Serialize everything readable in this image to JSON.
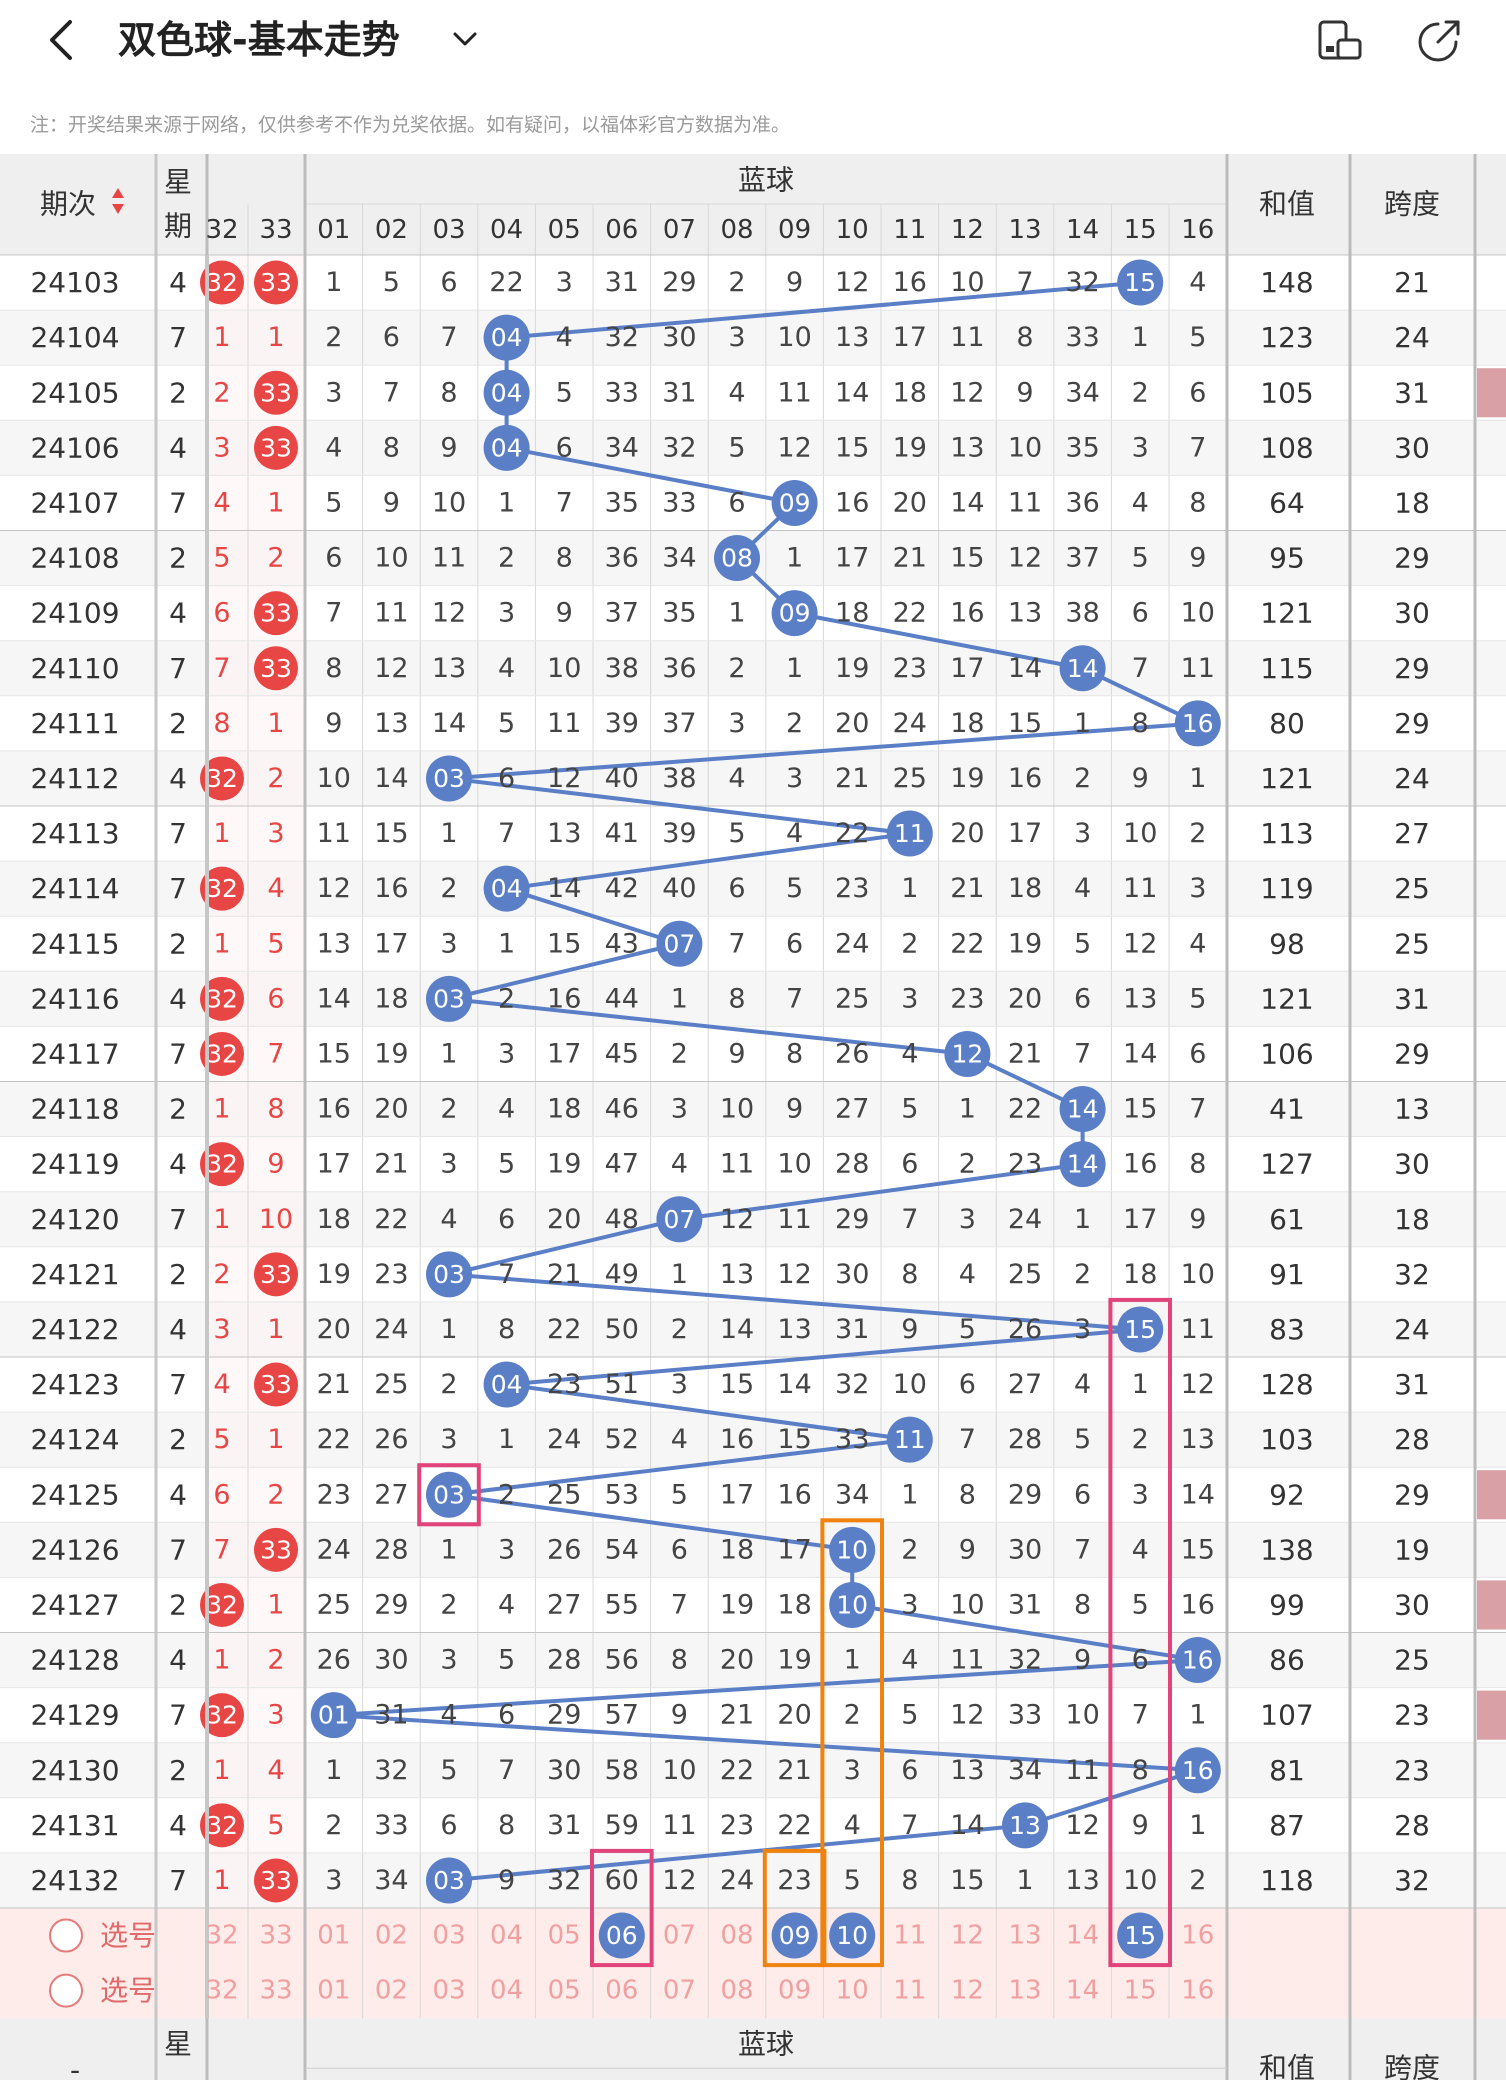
{
  "header": {
    "title": "双色球-基本走势",
    "note": "注：开奖结果来源于网络，仅供参考不作为兑奖依据。如有疑问，以福体彩官方数据为准。"
  },
  "table": {
    "col_issue": "期次",
    "col_week": "星期",
    "blue_group": "蓝球",
    "col_sum": "和值",
    "col_span": "跨度",
    "red_cols": [
      "32",
      "33"
    ],
    "blue_cols": [
      "01",
      "02",
      "03",
      "04",
      "05",
      "06",
      "07",
      "08",
      "09",
      "10",
      "11",
      "12",
      "13",
      "14",
      "15",
      "16"
    ],
    "rows": [
      {
        "issue": "24103",
        "week": "4",
        "r32": "32",
        "r33": "33",
        "r32_hit": true,
        "r33_hit": true,
        "blue": [
          "1",
          "5",
          "6",
          "22",
          "3",
          "31",
          "29",
          "2",
          "9",
          "12",
          "16",
          "10",
          "7",
          "32",
          "15",
          "4"
        ],
        "hit": 15,
        "sum": "148",
        "span": "21",
        "pink": false
      },
      {
        "issue": "24104",
        "week": "7",
        "r32": "1",
        "r33": "1",
        "r32_hit": false,
        "r33_hit": false,
        "blue": [
          "2",
          "6",
          "7",
          "04",
          "4",
          "32",
          "30",
          "3",
          "10",
          "13",
          "17",
          "11",
          "8",
          "33",
          "1",
          "5"
        ],
        "hit": 4,
        "sum": "123",
        "span": "24",
        "pink": false
      },
      {
        "issue": "24105",
        "week": "2",
        "r32": "2",
        "r33": "33",
        "r32_hit": false,
        "r33_hit": true,
        "blue": [
          "3",
          "7",
          "8",
          "04",
          "5",
          "33",
          "31",
          "4",
          "11",
          "14",
          "18",
          "12",
          "9",
          "34",
          "2",
          "6"
        ],
        "hit": 4,
        "sum": "105",
        "span": "31",
        "pink": true
      },
      {
        "issue": "24106",
        "week": "4",
        "r32": "3",
        "r33": "33",
        "r32_hit": false,
        "r33_hit": true,
        "blue": [
          "4",
          "8",
          "9",
          "04",
          "6",
          "34",
          "32",
          "5",
          "12",
          "15",
          "19",
          "13",
          "10",
          "35",
          "3",
          "7"
        ],
        "hit": 4,
        "sum": "108",
        "span": "30",
        "pink": false
      },
      {
        "issue": "24107",
        "week": "7",
        "r32": "4",
        "r33": "1",
        "r32_hit": false,
        "r33_hit": false,
        "blue": [
          "5",
          "9",
          "10",
          "1",
          "7",
          "35",
          "33",
          "6",
          "09",
          "16",
          "20",
          "14",
          "11",
          "36",
          "4",
          "8"
        ],
        "hit": 9,
        "sum": "64",
        "span": "18",
        "pink": false
      },
      {
        "issue": "24108",
        "week": "2",
        "r32": "5",
        "r33": "2",
        "r32_hit": false,
        "r33_hit": false,
        "blue": [
          "6",
          "10",
          "11",
          "2",
          "8",
          "36",
          "34",
          "08",
          "1",
          "17",
          "21",
          "15",
          "12",
          "37",
          "5",
          "9"
        ],
        "hit": 8,
        "sum": "95",
        "span": "29",
        "pink": false
      },
      {
        "issue": "24109",
        "week": "4",
        "r32": "6",
        "r33": "33",
        "r32_hit": false,
        "r33_hit": true,
        "blue": [
          "7",
          "11",
          "12",
          "3",
          "9",
          "37",
          "35",
          "1",
          "09",
          "18",
          "22",
          "16",
          "13",
          "38",
          "6",
          "10"
        ],
        "hit": 9,
        "sum": "121",
        "span": "30",
        "pink": false
      },
      {
        "issue": "24110",
        "week": "7",
        "r32": "7",
        "r33": "33",
        "r32_hit": false,
        "r33_hit": true,
        "blue": [
          "8",
          "12",
          "13",
          "4",
          "10",
          "38",
          "36",
          "2",
          "1",
          "19",
          "23",
          "17",
          "14",
          "14",
          "7",
          "11"
        ],
        "hit": 14,
        "sum": "115",
        "span": "29",
        "pink": false
      },
      {
        "issue": "24111",
        "week": "2",
        "r32": "8",
        "r33": "1",
        "r32_hit": false,
        "r33_hit": false,
        "blue": [
          "9",
          "13",
          "14",
          "5",
          "11",
          "39",
          "37",
          "3",
          "2",
          "20",
          "24",
          "18",
          "15",
          "1",
          "8",
          "16"
        ],
        "hit": 16,
        "sum": "80",
        "span": "29",
        "pink": false
      },
      {
        "issue": "24112",
        "week": "4",
        "r32": "32",
        "r33": "2",
        "r32_hit": true,
        "r33_hit": false,
        "blue": [
          "10",
          "14",
          "03",
          "6",
          "12",
          "40",
          "38",
          "4",
          "3",
          "21",
          "25",
          "19",
          "16",
          "2",
          "9",
          "1"
        ],
        "hit": 3,
        "sum": "121",
        "span": "24",
        "pink": false
      },
      {
        "issue": "24113",
        "week": "7",
        "r32": "1",
        "r33": "3",
        "r32_hit": false,
        "r33_hit": false,
        "blue": [
          "11",
          "15",
          "1",
          "7",
          "13",
          "41",
          "39",
          "5",
          "4",
          "22",
          "11",
          "20",
          "17",
          "3",
          "10",
          "2"
        ],
        "hit": 11,
        "sum": "113",
        "span": "27",
        "pink": false
      },
      {
        "issue": "24114",
        "week": "7",
        "r32": "32",
        "r33": "4",
        "r32_hit": true,
        "r33_hit": false,
        "blue": [
          "12",
          "16",
          "2",
          "04",
          "14",
          "42",
          "40",
          "6",
          "5",
          "23",
          "1",
          "21",
          "18",
          "4",
          "11",
          "3"
        ],
        "hit": 4,
        "sum": "119",
        "span": "25",
        "pink": false
      },
      {
        "issue": "24115",
        "week": "2",
        "r32": "1",
        "r33": "5",
        "r32_hit": false,
        "r33_hit": false,
        "blue": [
          "13",
          "17",
          "3",
          "1",
          "15",
          "43",
          "07",
          "7",
          "6",
          "24",
          "2",
          "22",
          "19",
          "5",
          "12",
          "4"
        ],
        "hit": 7,
        "sum": "98",
        "span": "25",
        "pink": false
      },
      {
        "issue": "24116",
        "week": "4",
        "r32": "32",
        "r33": "6",
        "r32_hit": true,
        "r33_hit": false,
        "blue": [
          "14",
          "18",
          "03",
          "2",
          "16",
          "44",
          "1",
          "8",
          "7",
          "25",
          "3",
          "23",
          "20",
          "6",
          "13",
          "5"
        ],
        "hit": 3,
        "sum": "121",
        "span": "31",
        "pink": false
      },
      {
        "issue": "24117",
        "week": "7",
        "r32": "32",
        "r33": "7",
        "r32_hit": true,
        "r33_hit": false,
        "blue": [
          "15",
          "19",
          "1",
          "3",
          "17",
          "45",
          "2",
          "9",
          "8",
          "26",
          "4",
          "12",
          "21",
          "7",
          "14",
          "6"
        ],
        "hit": 12,
        "sum": "106",
        "span": "29",
        "pink": false
      },
      {
        "issue": "24118",
        "week": "2",
        "r32": "1",
        "r33": "8",
        "r32_hit": false,
        "r33_hit": false,
        "blue": [
          "16",
          "20",
          "2",
          "4",
          "18",
          "46",
          "3",
          "10",
          "9",
          "27",
          "5",
          "1",
          "22",
          "14",
          "15",
          "7"
        ],
        "hit": 14,
        "sum": "41",
        "span": "13",
        "pink": false
      },
      {
        "issue": "24119",
        "week": "4",
        "r32": "32",
        "r33": "9",
        "r32_hit": true,
        "r33_hit": false,
        "blue": [
          "17",
          "21",
          "3",
          "5",
          "19",
          "47",
          "4",
          "11",
          "10",
          "28",
          "6",
          "2",
          "23",
          "14",
          "16",
          "8"
        ],
        "hit": 14,
        "sum": "127",
        "span": "30",
        "pink": false
      },
      {
        "issue": "24120",
        "week": "7",
        "r32": "1",
        "r33": "10",
        "r32_hit": false,
        "r33_hit": false,
        "blue": [
          "18",
          "22",
          "4",
          "6",
          "20",
          "48",
          "07",
          "12",
          "11",
          "29",
          "7",
          "3",
          "24",
          "1",
          "17",
          "9"
        ],
        "hit": 7,
        "sum": "61",
        "span": "18",
        "pink": false
      },
      {
        "issue": "24121",
        "week": "2",
        "r32": "2",
        "r33": "33",
        "r32_hit": false,
        "r33_hit": true,
        "blue": [
          "19",
          "23",
          "03",
          "7",
          "21",
          "49",
          "1",
          "13",
          "12",
          "30",
          "8",
          "4",
          "25",
          "2",
          "18",
          "10"
        ],
        "hit": 3,
        "sum": "91",
        "span": "32",
        "pink": false
      },
      {
        "issue": "24122",
        "week": "4",
        "r32": "3",
        "r33": "1",
        "r32_hit": false,
        "r33_hit": false,
        "blue": [
          "20",
          "24",
          "1",
          "8",
          "22",
          "50",
          "2",
          "14",
          "13",
          "31",
          "9",
          "5",
          "26",
          "3",
          "15",
          "11"
        ],
        "hit": 15,
        "sum": "83",
        "span": "24",
        "pink": false
      },
      {
        "issue": "24123",
        "week": "7",
        "r32": "4",
        "r33": "33",
        "r32_hit": false,
        "r33_hit": true,
        "blue": [
          "21",
          "25",
          "2",
          "04",
          "23",
          "51",
          "3",
          "15",
          "14",
          "32",
          "10",
          "6",
          "27",
          "4",
          "1",
          "12"
        ],
        "hit": 4,
        "sum": "128",
        "span": "31",
        "pink": false
      },
      {
        "issue": "24124",
        "week": "2",
        "r32": "5",
        "r33": "1",
        "r32_hit": false,
        "r33_hit": false,
        "blue": [
          "22",
          "26",
          "3",
          "1",
          "24",
          "52",
          "4",
          "16",
          "15",
          "33",
          "11",
          "7",
          "28",
          "5",
          "2",
          "13"
        ],
        "hit": 11,
        "sum": "103",
        "span": "28",
        "pink": false
      },
      {
        "issue": "24125",
        "week": "4",
        "r32": "6",
        "r33": "2",
        "r32_hit": false,
        "r33_hit": false,
        "blue": [
          "23",
          "27",
          "03",
          "2",
          "25",
          "53",
          "5",
          "17",
          "16",
          "34",
          "1",
          "8",
          "29",
          "6",
          "3",
          "14"
        ],
        "hit": 3,
        "sum": "92",
        "span": "29",
        "pink": true
      },
      {
        "issue": "24126",
        "week": "7",
        "r32": "7",
        "r33": "33",
        "r32_hit": false,
        "r33_hit": true,
        "blue": [
          "24",
          "28",
          "1",
          "3",
          "26",
          "54",
          "6",
          "18",
          "17",
          "10",
          "2",
          "9",
          "30",
          "7",
          "4",
          "15"
        ],
        "hit": 10,
        "sum": "138",
        "span": "19",
        "pink": false
      },
      {
        "issue": "24127",
        "week": "2",
        "r32": "32",
        "r33": "1",
        "r32_hit": true,
        "r33_hit": false,
        "blue": [
          "25",
          "29",
          "2",
          "4",
          "27",
          "55",
          "7",
          "19",
          "18",
          "10",
          "3",
          "10",
          "31",
          "8",
          "5",
          "16"
        ],
        "hit": 10,
        "sum": "99",
        "span": "30",
        "pink": true
      },
      {
        "issue": "24128",
        "week": "4",
        "r32": "1",
        "r33": "2",
        "r32_hit": false,
        "r33_hit": false,
        "blue": [
          "26",
          "30",
          "3",
          "5",
          "28",
          "56",
          "8",
          "20",
          "19",
          "1",
          "4",
          "11",
          "32",
          "9",
          "6",
          "16"
        ],
        "hit": 16,
        "sum": "86",
        "span": "25",
        "pink": false
      },
      {
        "issue": "24129",
        "week": "7",
        "r32": "32",
        "r33": "3",
        "r32_hit": true,
        "r33_hit": false,
        "blue": [
          "01",
          "31",
          "4",
          "6",
          "29",
          "57",
          "9",
          "21",
          "20",
          "2",
          "5",
          "12",
          "33",
          "10",
          "7",
          "1"
        ],
        "hit": 1,
        "sum": "107",
        "span": "23",
        "pink": true
      },
      {
        "issue": "24130",
        "week": "2",
        "r32": "1",
        "r33": "4",
        "r32_hit": false,
        "r33_hit": false,
        "blue": [
          "1",
          "32",
          "5",
          "7",
          "30",
          "58",
          "10",
          "22",
          "21",
          "3",
          "6",
          "13",
          "34",
          "11",
          "8",
          "16"
        ],
        "hit": 16,
        "sum": "81",
        "span": "23",
        "pink": false
      },
      {
        "issue": "24131",
        "week": "4",
        "r32": "32",
        "r33": "5",
        "r32_hit": true,
        "r33_hit": false,
        "blue": [
          "2",
          "33",
          "6",
          "8",
          "31",
          "59",
          "11",
          "23",
          "22",
          "4",
          "7",
          "14",
          "13",
          "12",
          "9",
          "1"
        ],
        "hit": 13,
        "sum": "87",
        "span": "28",
        "pink": false
      },
      {
        "issue": "24132",
        "week": "7",
        "r32": "1",
        "r33": "33",
        "r32_hit": false,
        "r33_hit": true,
        "blue": [
          "3",
          "34",
          "03",
          "9",
          "32",
          "60",
          "12",
          "24",
          "23",
          "5",
          "8",
          "15",
          "1",
          "13",
          "10",
          "2"
        ],
        "hit": 3,
        "sum": "118",
        "span": "32",
        "pink": false
      }
    ],
    "select_label": "选号",
    "picked": [
      6,
      9,
      10,
      15
    ],
    "footer_issue": "-"
  },
  "colors": {
    "blue_ball": "#5b7fc7",
    "red_ball": "#e84545",
    "pink_box": "#e0447a",
    "orange_box": "#f0820e",
    "select_bg": "#fdecea"
  }
}
